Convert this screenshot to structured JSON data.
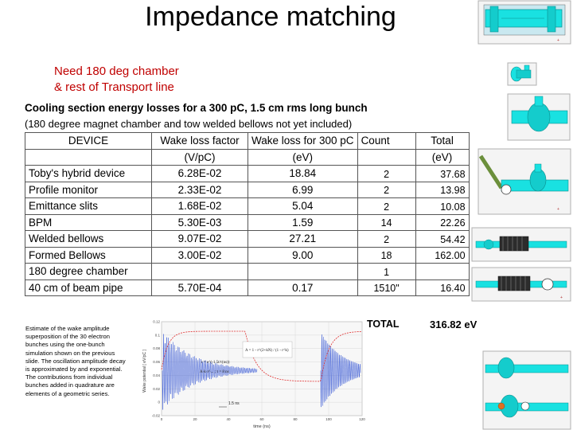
{
  "slide": {
    "title": "Impedance matching",
    "note_line1": "Need 180 deg chamber",
    "note_line2": "& rest of Transport line"
  },
  "table": {
    "caption_line1": "Cooling section energy losses for a 300 pC, 1.5 cm rms long bunch",
    "caption_line2": "(180 degree magnet chamber and tow welded bellows not yet included)",
    "header_row1": [
      "DEVICE",
      "Wake loss factor",
      "Wake loss for 300 pC",
      "Count",
      "Total"
    ],
    "header_row2": [
      "",
      "(V/pC)",
      "(eV)",
      "",
      "(eV)"
    ],
    "rows": [
      {
        "device": "Toby's hybrid device",
        "factor": "6.28E-02",
        "loss": "18.84",
        "count": "2",
        "total": "37.68"
      },
      {
        "device": "Profile monitor",
        "factor": "2.33E-02",
        "loss": "6.99",
        "count": "2",
        "total": "13.98"
      },
      {
        "device": "Emittance slits",
        "factor": "1.68E-02",
        "loss": "5.04",
        "count": "2",
        "total": "10.08"
      },
      {
        "device": "BPM",
        "factor": "5.30E-03",
        "loss": "1.59",
        "count": "14",
        "total": "22.26"
      },
      {
        "device": "Welded bellows",
        "factor": "9.07E-02",
        "loss": "27.21",
        "count": "2",
        "total": "54.42"
      },
      {
        "device": "Formed Bellows",
        "factor": "3.00E-02",
        "loss": "9.00",
        "count": "18",
        "total": "162.00"
      },
      {
        "device": "180 degree chamber",
        "factor": "",
        "loss": "",
        "count": "1",
        "total": ""
      },
      {
        "device": "40 cm of beam pipe",
        "factor": "5.70E-04",
        "loss": "0.17",
        "count": "1510\"",
        "total": "16.40"
      }
    ],
    "total_label": "TOTAL",
    "total_value": "316.82 eV"
  },
  "estimate_text": "Estimate of the wake amplitude superposition of the 30 electron bunches using the one-bunch simulation shown on the previous slide. The oscillation amplitude decay is approximated by and exponential. The contributions from individual bunches added in quadrature are elements of a geometric series.",
  "plot": {
    "xlabel": "time (ns)",
    "ylabel": "Wake potential [ eV/pC ]",
    "x_ticks": [
      "0",
      "20",
      "40",
      "60",
      "80",
      "100",
      "120"
    ],
    "y_ticks": [
      "0.12",
      "0.1",
      "0.08",
      "0.06",
      "0.04",
      "0.02",
      "0",
      "-0.02"
    ],
    "annotations": [
      "A = 1 - r^(2+kN) / (1 - r^k)",
      "r = e^(-1.5t/τ(ns))",
      "A·k·r^... ; τ = 8 ns",
      "1.5 ns"
    ],
    "colors": {
      "trace": "#3b5bd6",
      "envelope": "#e03030"
    }
  },
  "colors": {
    "note": "#c00000",
    "cad_body": "#19e1e1"
  }
}
